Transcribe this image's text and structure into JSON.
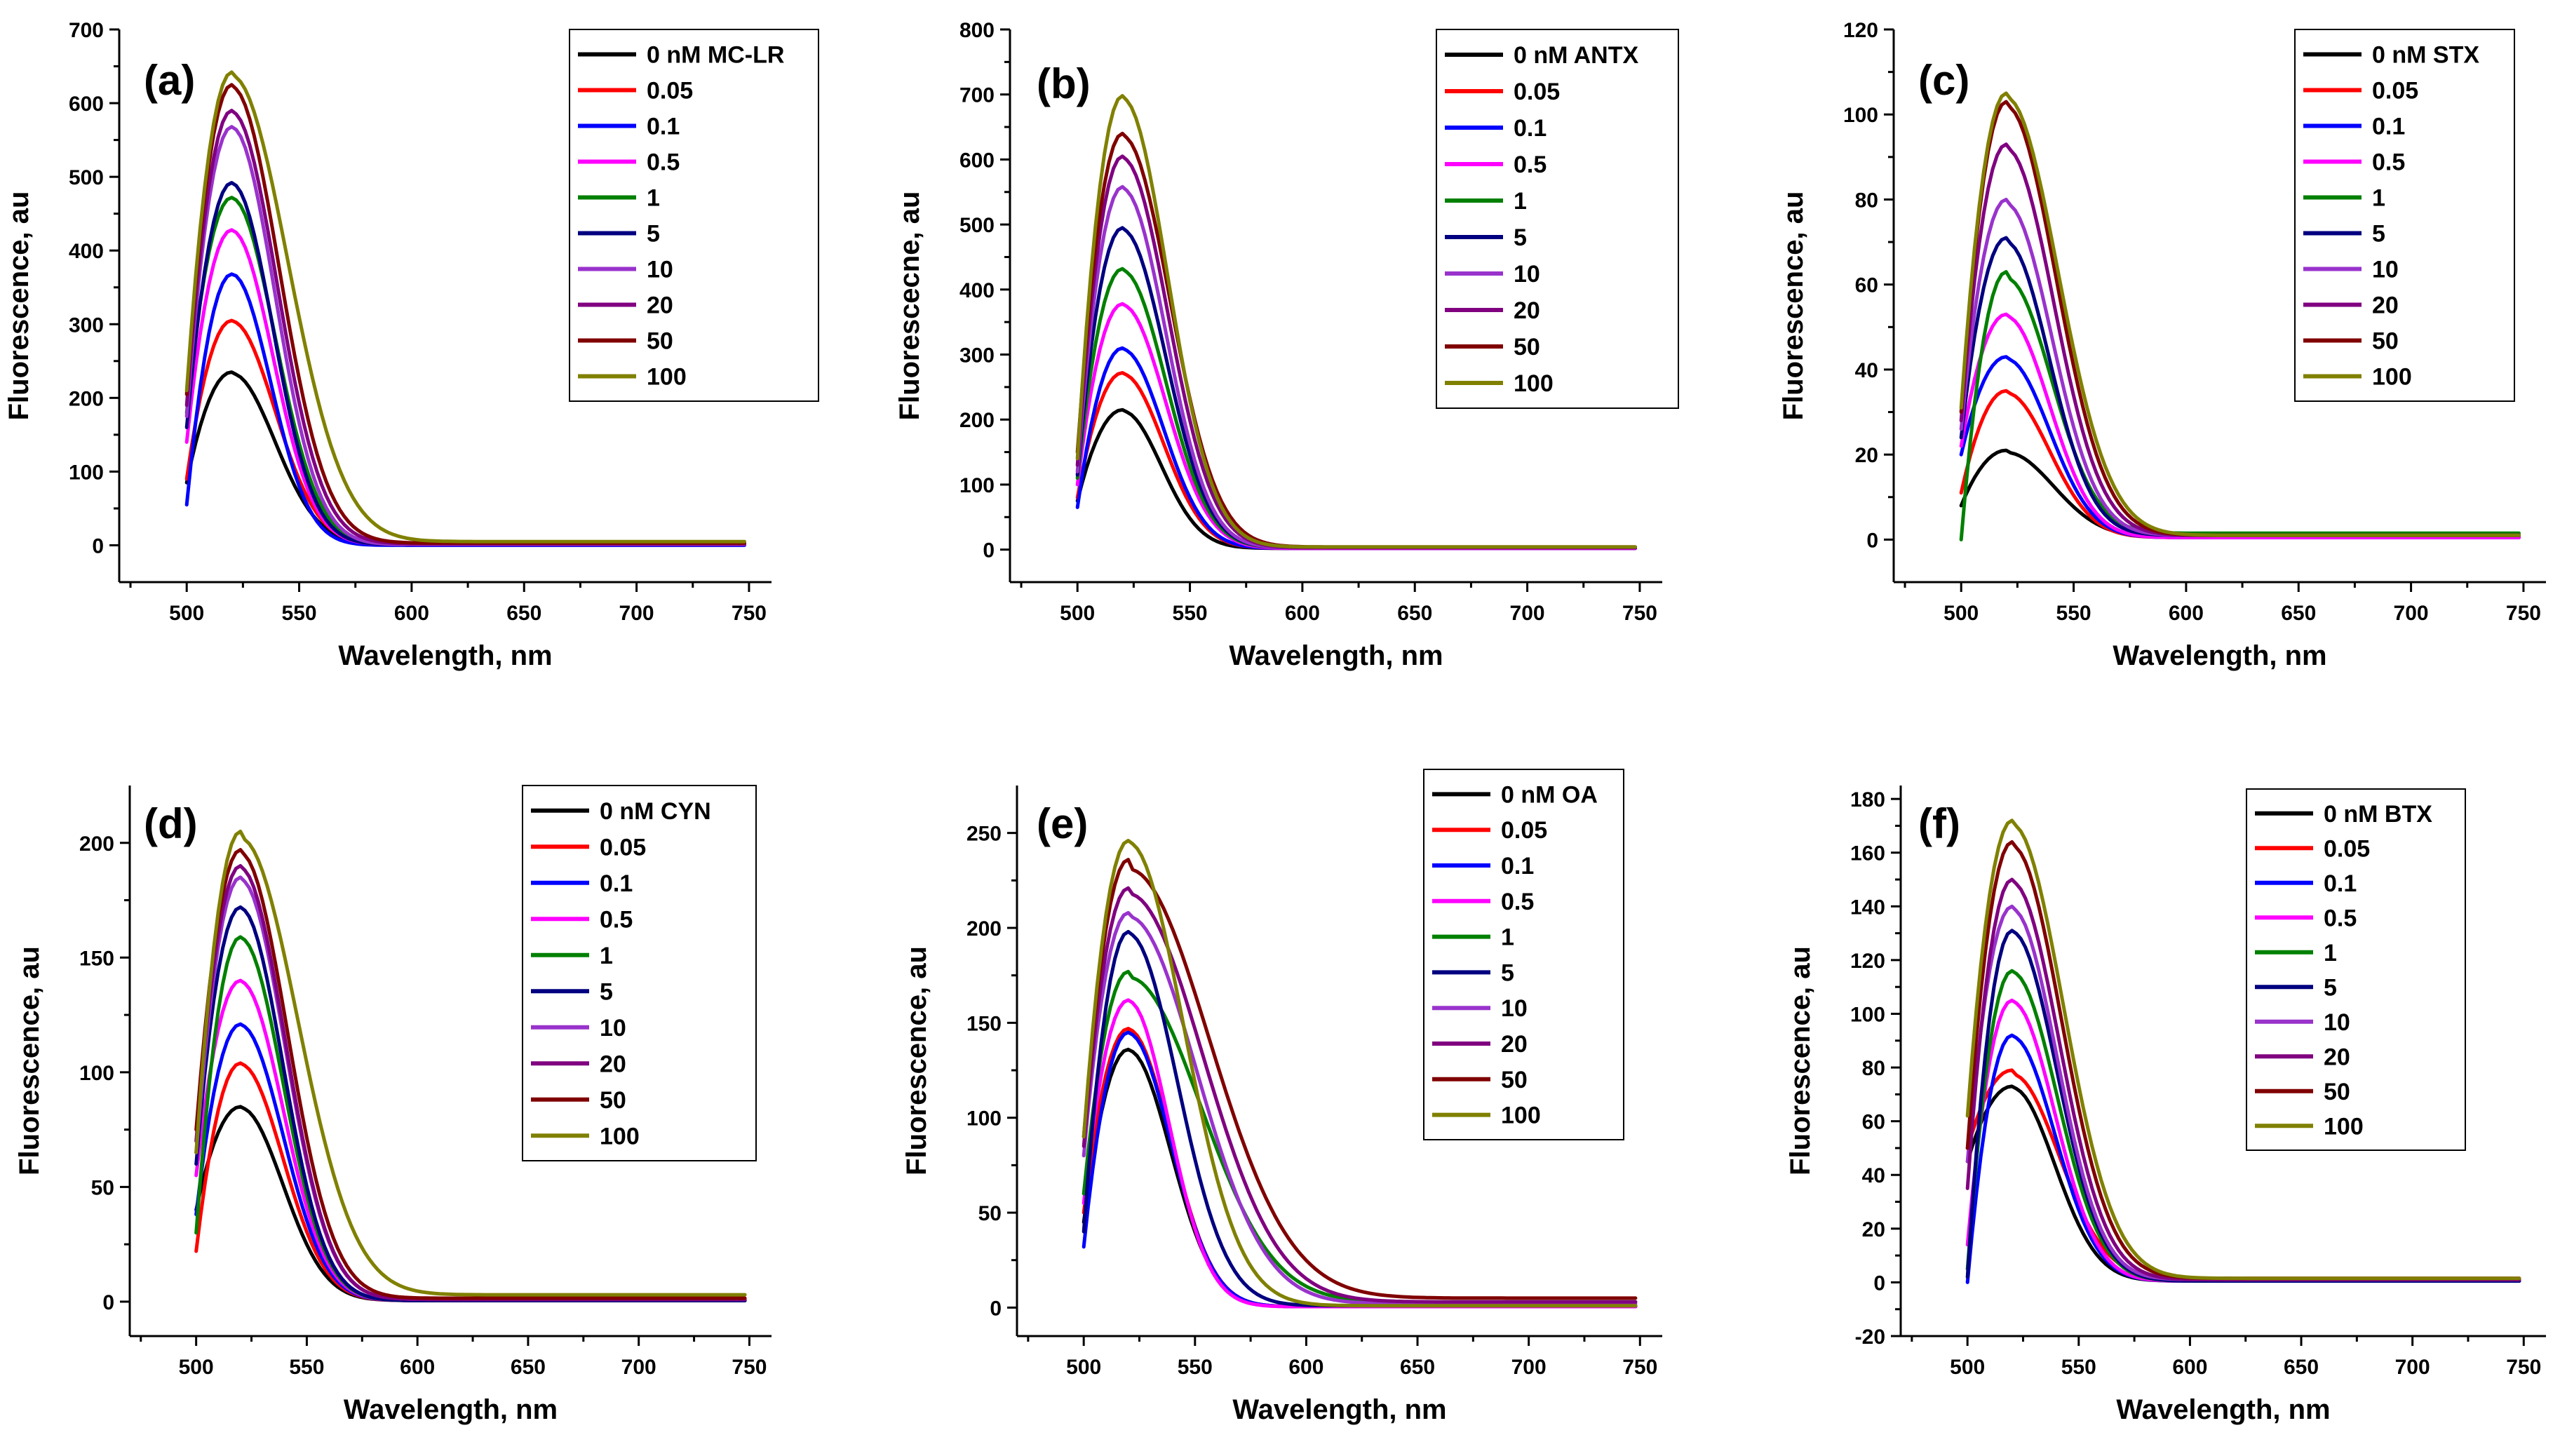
{
  "figure": {
    "xlabel": "Wavelength, nm",
    "colors": {
      "0": "#000000",
      "0.05": "#ff0000",
      "0.1": "#0000ff",
      "0.5": "#ff00ff",
      "1": "#008000",
      "5": "#000080",
      "10": "#9933cc",
      "20": "#800080",
      "50": "#800000",
      "100": "#808000"
    }
  },
  "chart_data": [
    {
      "type": "line",
      "panel": "(a)",
      "toxin": "MC-LR",
      "xlabel": "Wavelength, nm",
      "ylabel": "Fluorescence, au",
      "xlim": [
        470,
        760
      ],
      "ylim": [
        -50,
        700
      ],
      "xticks": [
        500,
        550,
        600,
        650,
        700,
        750
      ],
      "yticks": [
        0,
        100,
        200,
        300,
        400,
        500,
        600,
        700
      ],
      "legend": [
        "0 nM MC-LR",
        "0.05",
        "0.1",
        "0.5",
        "1",
        "5",
        "10",
        "20",
        "50",
        "100"
      ],
      "series": [
        {
          "name": "0 nM MC-LR",
          "conc": "0",
          "start": 85,
          "peak": 235,
          "tail": 2,
          "decay": 1.0
        },
        {
          "name": "0.05",
          "conc": "0.05",
          "start": 90,
          "peak": 305,
          "tail": 1,
          "decay": 1.0
        },
        {
          "name": "0.1",
          "conc": "0.1",
          "start": 55,
          "peak": 368,
          "tail": 0,
          "decay": 0.9
        },
        {
          "name": "0.5",
          "conc": "0.5",
          "start": 140,
          "peak": 428,
          "tail": 1,
          "decay": 0.95
        },
        {
          "name": "1",
          "conc": "1",
          "start": 180,
          "peak": 472,
          "tail": 1,
          "decay": 1.0
        },
        {
          "name": "5",
          "conc": "5",
          "start": 160,
          "peak": 492,
          "tail": 1,
          "decay": 0.95
        },
        {
          "name": "10",
          "conc": "10",
          "start": 175,
          "peak": 568,
          "tail": 1,
          "decay": 1.0
        },
        {
          "name": "20",
          "conc": "20",
          "start": 190,
          "peak": 590,
          "tail": 2,
          "decay": 1.05
        },
        {
          "name": "50",
          "conc": "50",
          "start": 205,
          "peak": 625,
          "tail": 3,
          "decay": 1.1
        },
        {
          "name": "100",
          "conc": "100",
          "start": 210,
          "peak": 642,
          "tail": 5,
          "decay": 1.3
        }
      ]
    },
    {
      "type": "line",
      "panel": "(b)",
      "toxin": "ANTX",
      "xlabel": "Wavelength, nm",
      "ylabel": "Fluorescecne, au",
      "xlim": [
        470,
        760
      ],
      "ylim": [
        -50,
        800
      ],
      "xticks": [
        500,
        550,
        600,
        650,
        700,
        750
      ],
      "yticks": [
        0,
        100,
        200,
        300,
        400,
        500,
        600,
        700,
        800
      ],
      "legend": [
        "0 nM ANTX",
        "0.05",
        "0.1",
        "0.5",
        "1",
        "5",
        "10",
        "20",
        "50",
        "100"
      ],
      "series": [
        {
          "name": "0 nM ANTX",
          "conc": "0",
          "start": 75,
          "peak": 215,
          "tail": 2,
          "decay": 0.9
        },
        {
          "name": "0.05",
          "conc": "0.05",
          "start": 80,
          "peak": 272,
          "tail": 2,
          "decay": 0.95
        },
        {
          "name": "0.1",
          "conc": "0.1",
          "start": 65,
          "peak": 310,
          "tail": 2,
          "decay": 0.95
        },
        {
          "name": "0.5",
          "conc": "0.5",
          "start": 100,
          "peak": 378,
          "tail": 2,
          "decay": 1.0
        },
        {
          "name": "1",
          "conc": "1",
          "start": 110,
          "peak": 432,
          "tail": 3,
          "decay": 1.0
        },
        {
          "name": "5",
          "conc": "5",
          "start": 115,
          "peak": 495,
          "tail": 3,
          "decay": 1.0
        },
        {
          "name": "10",
          "conc": "10",
          "start": 120,
          "peak": 558,
          "tail": 3,
          "decay": 1.0
        },
        {
          "name": "20",
          "conc": "20",
          "start": 130,
          "peak": 605,
          "tail": 3,
          "decay": 1.05
        },
        {
          "name": "50",
          "conc": "50",
          "start": 150,
          "peak": 640,
          "tail": 4,
          "decay": 1.1
        },
        {
          "name": "100",
          "conc": "100",
          "start": 140,
          "peak": 698,
          "tail": 4,
          "decay": 1.05
        }
      ]
    },
    {
      "type": "line",
      "panel": "(c)",
      "toxin": "STX",
      "xlabel": "Wavelength, nm",
      "ylabel": "Fluorescence, au",
      "xlim": [
        470,
        760
      ],
      "ylim": [
        -10,
        120
      ],
      "xticks": [
        500,
        550,
        600,
        650,
        700,
        750
      ],
      "yticks": [
        0,
        20,
        40,
        60,
        80,
        100,
        120
      ],
      "legend": [
        "0 nM STX",
        "0.05",
        "0.1",
        "0.5",
        "1",
        "5",
        "10",
        "20",
        "50",
        "100"
      ],
      "series": [
        {
          "name": "0 nM STX",
          "conc": "0",
          "start": 8,
          "peak": 21,
          "tail": 0.5,
          "decay": 1.1
        },
        {
          "name": "0.05",
          "conc": "0.05",
          "start": 11,
          "peak": 35,
          "tail": 0.5,
          "decay": 1.0
        },
        {
          "name": "0.1",
          "conc": "0.1",
          "start": 20,
          "peak": 43,
          "tail": 0.5,
          "decay": 1.0
        },
        {
          "name": "0.5",
          "conc": "0.5",
          "start": 22,
          "peak": 53,
          "tail": 0.5,
          "decay": 1.0
        },
        {
          "name": "1",
          "conc": "1",
          "start": 0,
          "peak": 63,
          "tail": 1.5,
          "decay": 1.05
        },
        {
          "name": "5",
          "conc": "5",
          "start": 24,
          "peak": 71,
          "tail": 1,
          "decay": 1.0
        },
        {
          "name": "10",
          "conc": "10",
          "start": 26,
          "peak": 80,
          "tail": 1,
          "decay": 1.05
        },
        {
          "name": "20",
          "conc": "20",
          "start": 28,
          "peak": 93,
          "tail": 1,
          "decay": 1.1
        },
        {
          "name": "50",
          "conc": "50",
          "start": 30,
          "peak": 103,
          "tail": 1,
          "decay": 1.15
        },
        {
          "name": "100",
          "conc": "100",
          "start": 31,
          "peak": 105,
          "tail": 1,
          "decay": 1.2
        }
      ]
    },
    {
      "type": "line",
      "panel": "(d)",
      "toxin": "CYN",
      "xlabel": "Wavelength, nm",
      "ylabel": "Fluorescence, au",
      "xlim": [
        470,
        760
      ],
      "ylim": [
        -15,
        225
      ],
      "xticks": [
        500,
        550,
        600,
        650,
        700,
        750
      ],
      "yticks": [
        0,
        50,
        100,
        150,
        200
      ],
      "legend": [
        "0 nM CYN",
        "0.05",
        "0.1",
        "0.5",
        "1",
        "5",
        "10",
        "20",
        "50",
        "100"
      ],
      "series": [
        {
          "name": "0 nM CYN",
          "conc": "0",
          "start": 40,
          "peak": 85,
          "tail": 0.5,
          "decay": 1.0
        },
        {
          "name": "0.05",
          "conc": "0.05",
          "start": 22,
          "peak": 104,
          "tail": 0.5,
          "decay": 1.0
        },
        {
          "name": "0.1",
          "conc": "0.1",
          "start": 38,
          "peak": 121,
          "tail": 0.5,
          "decay": 1.0
        },
        {
          "name": "0.5",
          "conc": "0.5",
          "start": 55,
          "peak": 140,
          "tail": 0.5,
          "decay": 1.0
        },
        {
          "name": "1",
          "conc": "1",
          "start": 30,
          "peak": 159,
          "tail": 0.5,
          "decay": 1.0
        },
        {
          "name": "5",
          "conc": "5",
          "start": 60,
          "peak": 172,
          "tail": 0.5,
          "decay": 1.0
        },
        {
          "name": "10",
          "conc": "10",
          "start": 65,
          "peak": 185,
          "tail": 1,
          "decay": 1.05
        },
        {
          "name": "20",
          "conc": "20",
          "start": 70,
          "peak": 190,
          "tail": 1,
          "decay": 1.05
        },
        {
          "name": "50",
          "conc": "50",
          "start": 75,
          "peak": 197,
          "tail": 1.5,
          "decay": 1.1
        },
        {
          "name": "100",
          "conc": "100",
          "start": 65,
          "peak": 205,
          "tail": 3,
          "decay": 1.35
        }
      ]
    },
    {
      "type": "line",
      "panel": "(e)",
      "toxin": "OA",
      "xlabel": "Wavelength, nm",
      "ylabel": "Fluorescence, au",
      "xlim": [
        470,
        760
      ],
      "ylim": [
        -15,
        275
      ],
      "xticks": [
        500,
        550,
        600,
        650,
        700,
        750
      ],
      "yticks": [
        0,
        50,
        100,
        150,
        200,
        250
      ],
      "legend": [
        "0 nM OA",
        "0.05",
        "0.1",
        "0.5",
        "1",
        "5",
        "10",
        "20",
        "50",
        "100"
      ],
      "series": [
        {
          "name": "0 nM OA",
          "conc": "0",
          "start": 45,
          "peak": 136,
          "tail": 0.5,
          "decay": 1.0
        },
        {
          "name": "0.05",
          "conc": "0.05",
          "start": 50,
          "peak": 147,
          "tail": 0.5,
          "decay": 1.0
        },
        {
          "name": "0.1",
          "conc": "0.1",
          "start": 32,
          "peak": 145,
          "tail": 0.5,
          "decay": 1.0
        },
        {
          "name": "0.5",
          "conc": "0.5",
          "start": 55,
          "peak": 162,
          "tail": 0.5,
          "decay": 0.95
        },
        {
          "name": "1",
          "conc": "1",
          "start": 60,
          "peak": 177,
          "tail": 3,
          "decay": 1.7
        },
        {
          "name": "5",
          "conc": "5",
          "start": 40,
          "peak": 198,
          "tail": 1,
          "decay": 1.15
        },
        {
          "name": "10",
          "conc": "10",
          "start": 80,
          "peak": 208,
          "tail": 2,
          "decay": 1.6
        },
        {
          "name": "20",
          "conc": "20",
          "start": 85,
          "peak": 221,
          "tail": 3,
          "decay": 1.75
        },
        {
          "name": "50",
          "conc": "50",
          "start": 90,
          "peak": 236,
          "tail": 5,
          "decay": 1.9
        },
        {
          "name": "100",
          "conc": "100",
          "start": 90,
          "peak": 246,
          "tail": 1,
          "decay": 1.3
        }
      ]
    },
    {
      "type": "line",
      "panel": "(f)",
      "toxin": "BTX",
      "xlabel": "Wavelength, nm",
      "ylabel": "Fluorescence, au",
      "xlim": [
        470,
        760
      ],
      "ylim": [
        -20,
        185
      ],
      "xticks": [
        500,
        550,
        600,
        650,
        700,
        750
      ],
      "yticks": [
        -20,
        0,
        20,
        40,
        60,
        80,
        100,
        120,
        140,
        160,
        180
      ],
      "legend": [
        "0 nM BTX",
        "0.05",
        "0.1",
        "0.5",
        "1",
        "5",
        "10",
        "20",
        "50",
        "100"
      ],
      "series": [
        {
          "name": "0 nM BTX",
          "conc": "0",
          "start": 45,
          "peak": 73,
          "tail": 0.5,
          "decay": 1.0
        },
        {
          "name": "0.05",
          "conc": "0.05",
          "start": 50,
          "peak": 79,
          "tail": 1.5,
          "decay": 1.1
        },
        {
          "name": "0.1",
          "conc": "0.1",
          "start": 0,
          "peak": 92,
          "tail": 0.5,
          "decay": 1.0
        },
        {
          "name": "0.5",
          "conc": "0.5",
          "start": 14,
          "peak": 105,
          "tail": 0.5,
          "decay": 1.0
        },
        {
          "name": "1",
          "conc": "1",
          "start": 5,
          "peak": 116,
          "tail": 0.5,
          "decay": 1.05
        },
        {
          "name": "5",
          "conc": "5",
          "start": 2,
          "peak": 131,
          "tail": 0.5,
          "decay": 1.05
        },
        {
          "name": "10",
          "conc": "10",
          "start": 45,
          "peak": 140,
          "tail": 1,
          "decay": 1.05
        },
        {
          "name": "20",
          "conc": "20",
          "start": 35,
          "peak": 150,
          "tail": 1,
          "decay": 1.1
        },
        {
          "name": "50",
          "conc": "50",
          "start": 50,
          "peak": 164,
          "tail": 1.5,
          "decay": 1.15
        },
        {
          "name": "100",
          "conc": "100",
          "start": 62,
          "peak": 172,
          "tail": 1.5,
          "decay": 1.2
        }
      ]
    }
  ]
}
